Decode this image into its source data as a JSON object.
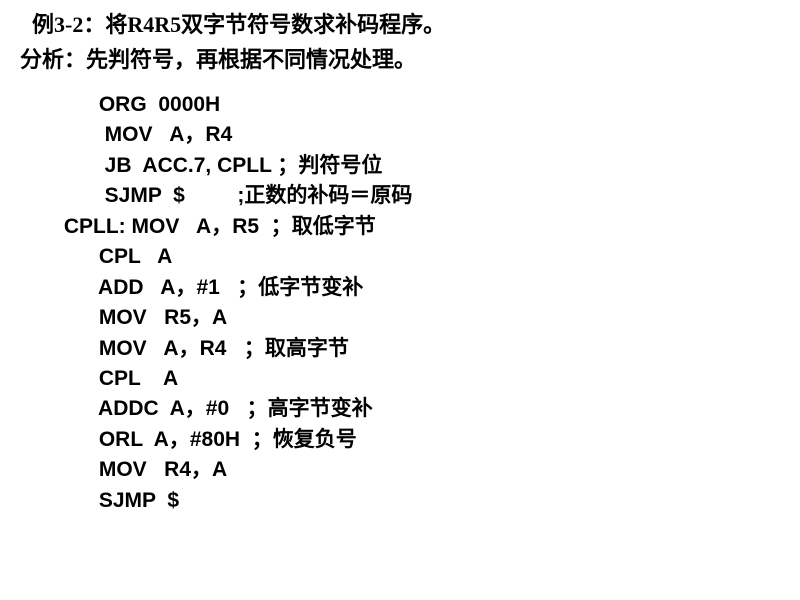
{
  "title": {
    "prefix": "例",
    "number": "3-2",
    "colon": "：",
    "text1": "将",
    "reg": "R4R5",
    "text2": "双字节符号数求补码程序。"
  },
  "analysis": {
    "label": "分析：",
    "text": "先判符号，再根据不同情况处理。"
  },
  "code": [
    "       ORG  0000H",
    "        MOV   A，R4",
    "        JB  ACC.7, CPLL ；判符号位",
    "        SJMP  $         ;正数的补码＝原码",
    " CPLL: MOV   A，R5  ；取低字节",
    "       CPL   A",
    "       ADD   A，#1   ；低字节变补",
    "       MOV   R5，A",
    "       MOV   A，R4   ；取高字节",
    "       CPL    A",
    "       ADDC  A，#0   ；高字节变补",
    "       ORL  A，#80H  ；恢复负号",
    "       MOV   R4，A",
    "       SJMP  $"
  ]
}
